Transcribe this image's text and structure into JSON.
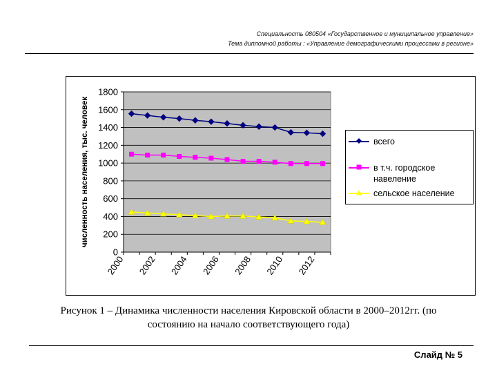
{
  "header": {
    "line1": "Специальность 080504 «Государственное и муниципальное управление»",
    "line2": "Тема дипломной работы : «Управление демографическими процессами в регионе»"
  },
  "caption": {
    "line1": "Рисунок 1 – Динамика численности населения Кировской области в 2000–2012гг. (по",
    "line2": "состоянию на начало соответствующего года)"
  },
  "slide_number": "Слайд № 5",
  "chart_data": {
    "type": "line",
    "title": "",
    "xlabel": "",
    "ylabel": "численность населения, тыс. человек",
    "x": [
      2000,
      2001,
      2002,
      2003,
      2004,
      2005,
      2006,
      2007,
      2008,
      2009,
      2010,
      2011,
      2012
    ],
    "x_tick_labels": [
      "2000",
      "2002",
      "2004",
      "2006",
      "2008",
      "2010",
      "2012"
    ],
    "y_tick_labels": [
      "0",
      "200",
      "400",
      "600",
      "800",
      "1000",
      "1200",
      "1400",
      "1600",
      "1800"
    ],
    "ylim": [
      0,
      1800
    ],
    "grid": "horizontal",
    "plot_background": "#c0c0c0",
    "legend_position": "right",
    "series": [
      {
        "name": "всего",
        "color": "#000080",
        "marker": "diamond",
        "values": [
          1555,
          1535,
          1515,
          1500,
          1480,
          1465,
          1445,
          1425,
          1410,
          1400,
          1345,
          1340,
          1330
        ]
      },
      {
        "name": "в т.ч. городское навеление",
        "color": "#ff00ff",
        "marker": "square",
        "values": [
          1100,
          1090,
          1090,
          1075,
          1065,
          1055,
          1040,
          1020,
          1020,
          1010,
          995,
          995,
          995
        ]
      },
      {
        "name": "сельское население",
        "color": "#ffff00",
        "marker": "triangle",
        "values": [
          450,
          440,
          430,
          420,
          410,
          400,
          405,
          405,
          395,
          385,
          350,
          345,
          335
        ]
      }
    ]
  }
}
